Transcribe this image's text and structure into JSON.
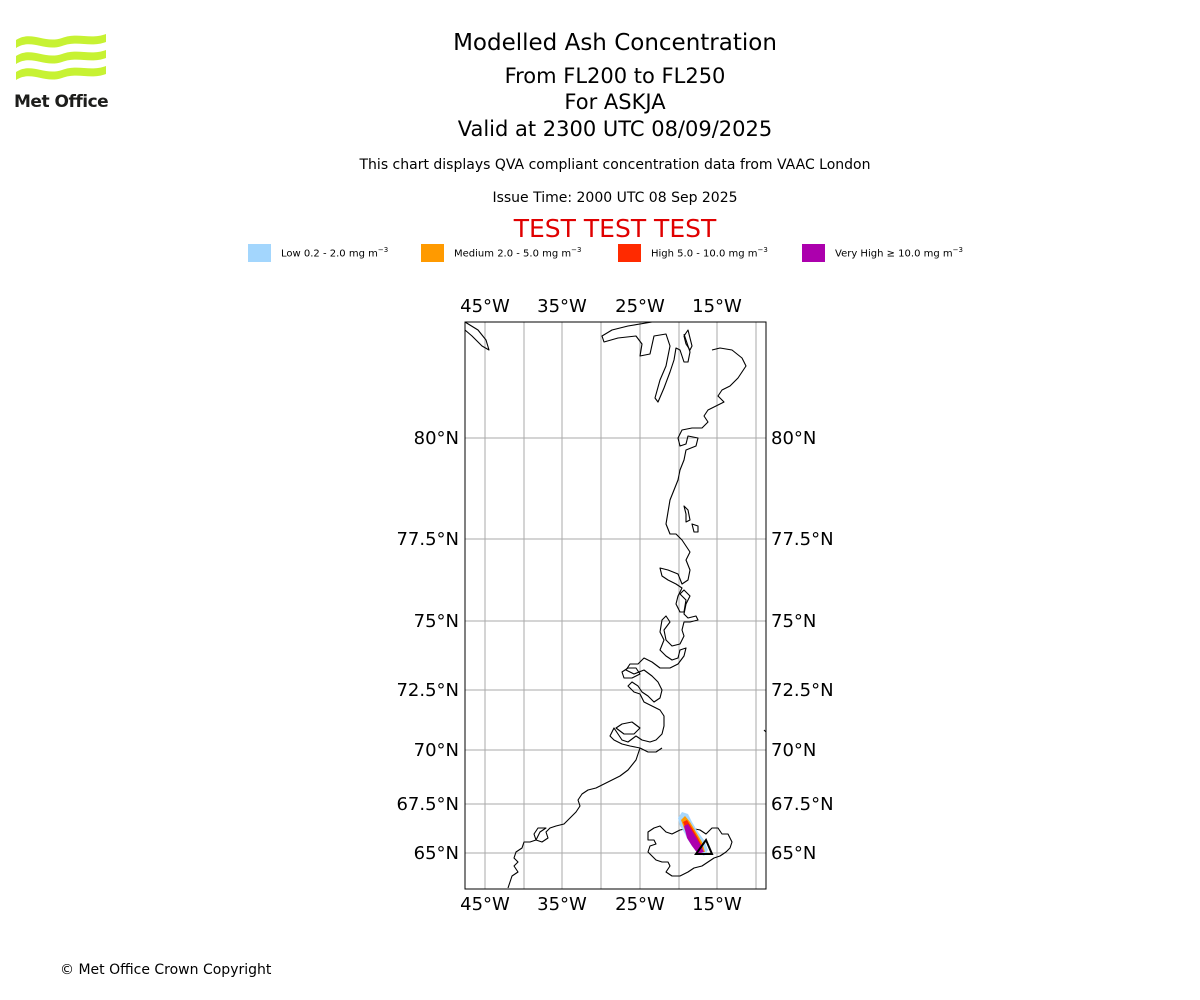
{
  "logo": {
    "text": "Met Office"
  },
  "title": {
    "line1": "Modelled Ash Concentration",
    "line2": "From FL200 to FL250",
    "line3": "For ASKJA",
    "line4": "Valid at 2300 UTC 08/09/2025",
    "subtitle": "This chart displays QVA compliant concentration data from VAAC London",
    "issue_time": "Issue Time: 2000 UTC 08 Sep 2025",
    "test_banner": "TEST TEST TEST"
  },
  "legend": [
    {
      "name": "Low",
      "range": "0.2 - 2.0 mg m",
      "color": "#a3d6fd"
    },
    {
      "name": "Medium",
      "range": "2.0 - 5.0 mg m",
      "color": "#ff9a00"
    },
    {
      "name": "High",
      "range": "5.0 - 10.0 mg m",
      "color": "#ff2a00"
    },
    {
      "name": "Very High",
      "range": "≥  10.0 mg m",
      "color": "#ac00ad"
    }
  ],
  "legend_unit_exponent": "−3",
  "map": {
    "lon_labels": [
      "45°W",
      "35°W",
      "25°W",
      "15°W"
    ],
    "lat_labels": [
      "80°N",
      "77.5°N",
      "75°N",
      "72.5°N",
      "70°N",
      "67.5°N",
      "65°N"
    ],
    "gridline_color": "#aaaaaa"
  },
  "footer": {
    "copyright": "© Met Office Crown Copyright"
  }
}
